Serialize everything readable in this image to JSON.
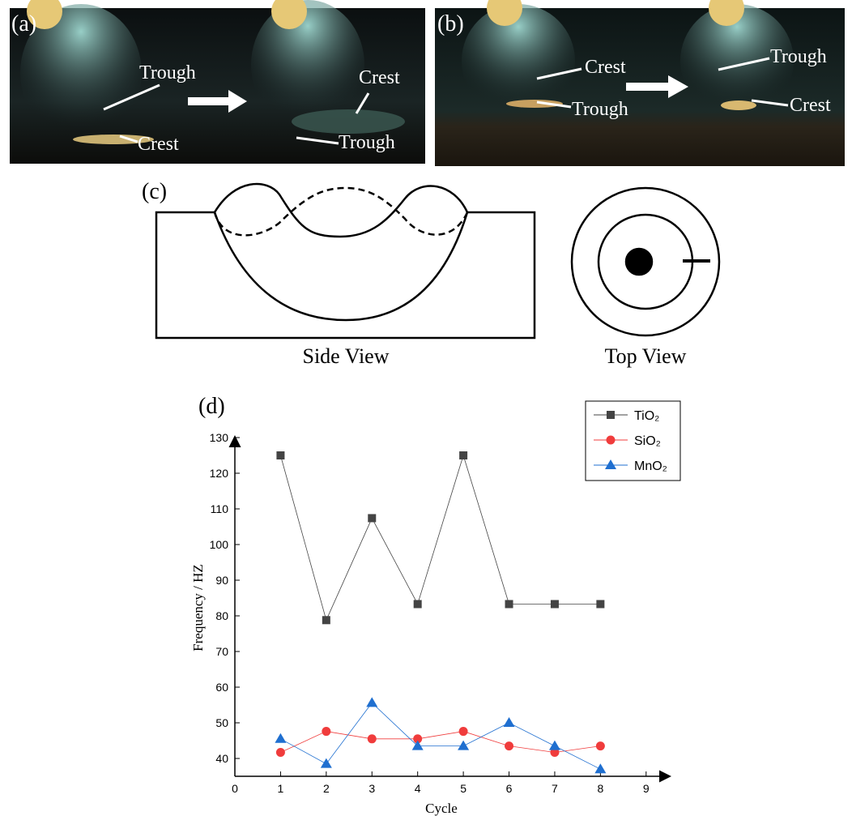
{
  "panels": {
    "a": {
      "label": "(a)",
      "annotations": [
        "Trough",
        "Crest",
        "Crest",
        "Trough"
      ]
    },
    "b": {
      "label": "(b)",
      "annotations": [
        "Crest",
        "Trough",
        "Trough",
        "Crest"
      ]
    },
    "c": {
      "label": "(c)",
      "captions": [
        "Side View",
        "Top View"
      ]
    }
  },
  "chart_data": {
    "type": "line",
    "label": "(d)",
    "x_label": "Cycle",
    "y_label": "Frequency / HZ",
    "x": [
      1,
      2,
      3,
      4,
      5,
      6,
      7,
      8
    ],
    "series": [
      {
        "name": "TiO₂",
        "color": "#444444",
        "marker": "square",
        "values": [
          125,
          78.8,
          107.4,
          83.3,
          125,
          83.3,
          83.3,
          83.3
        ]
      },
      {
        "name": "SiO₂",
        "color": "#f03c3c",
        "marker": "circle",
        "values": [
          41.7,
          47.6,
          45.5,
          45.5,
          47.6,
          43.5,
          41.7,
          43.5
        ]
      },
      {
        "name": "MnO₂",
        "color": "#1f6fd0",
        "marker": "triangle",
        "values": [
          45.5,
          38.5,
          55.6,
          43.5,
          43.5,
          50,
          43.5,
          37
        ]
      }
    ],
    "xlim": [
      0,
      9.5
    ],
    "xticks": [
      0,
      1,
      2,
      3,
      4,
      5,
      6,
      7,
      8,
      9
    ],
    "ylim": [
      35,
      130
    ],
    "yticks": [
      40,
      50,
      60,
      70,
      80,
      90,
      100,
      110,
      120,
      130
    ],
    "legend": "upper right",
    "grid": false
  }
}
